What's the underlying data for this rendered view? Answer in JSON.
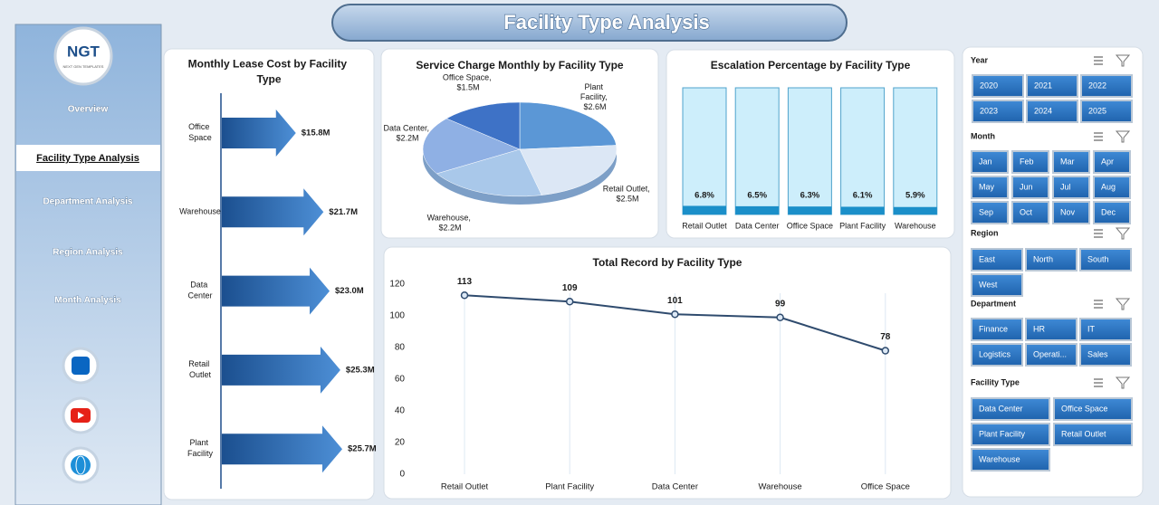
{
  "header": {
    "title": "Facility Type Analysis"
  },
  "sidebar": {
    "logo": "NGT",
    "logo_subtitle": "NEXT GEN TEMPLATES",
    "nav": [
      "Overview",
      "Facility Type Analysis",
      "Department Analysis",
      "Region Analysis",
      "Month Analysis"
    ]
  },
  "chart_data": [
    {
      "type": "arrow-bar",
      "title": "Monthly Lease Cost by Facility Type",
      "categories": [
        "Office Space",
        "Warehouse",
        "Data Center",
        "Retail Outlet",
        "Plant Facility"
      ],
      "values": [
        15.8,
        21.7,
        23.0,
        25.3,
        25.7
      ],
      "value_labels": [
        "$15.8M",
        "$21.7M",
        "$23.0M",
        "$25.3M",
        "$25.7M"
      ]
    },
    {
      "type": "pie",
      "title": "Service Charge Monthly by Facility Type",
      "values": [
        2.6,
        2.5,
        2.2,
        2.2,
        1.5
      ],
      "value_labels": [
        "Plant Facility, $2.6M",
        "Retail Outlet, $2.5M",
        "Warehouse, $2.2M",
        "Data Center, $2.2M",
        "Office Space, $1.5M"
      ],
      "colors": [
        "#5b97d6",
        "#dce7f5",
        "#a9c8ea",
        "#8fb0e4",
        "#3e72c6"
      ]
    },
    {
      "type": "bar",
      "title": "Escalation Percentage by Facility Type",
      "categories": [
        "Retail Outlet",
        "Data Center",
        "Office Space",
        "Plant Facility",
        "Warehouse"
      ],
      "values": [
        6.8,
        6.5,
        6.3,
        6.1,
        5.9
      ],
      "value_labels": [
        "6.8%",
        "6.5%",
        "6.3%",
        "6.1%",
        "5.9%"
      ],
      "ylim": [
        0,
        100
      ],
      "color": "#1b8fc9"
    },
    {
      "type": "line",
      "title": "Total Record by Facility Type",
      "categories": [
        "Retail Outlet",
        "Plant Facility",
        "Data Center",
        "Warehouse",
        "Office Space"
      ],
      "values": [
        113,
        109,
        101,
        99,
        78
      ],
      "ylim": [
        0,
        120
      ],
      "yticks": [
        0,
        20,
        40,
        60,
        80,
        100,
        120
      ],
      "color": "#2f4b6e"
    }
  ],
  "slicers": [
    {
      "title": "Year",
      "items": [
        "2020",
        "2021",
        "2022",
        "2023",
        "2024",
        "2025"
      ]
    },
    {
      "title": "Month",
      "items": [
        "Jan",
        "Feb",
        "Mar",
        "Apr",
        "May",
        "Jun",
        "Jul",
        "Aug",
        "Sep",
        "Oct",
        "Nov",
        "Dec"
      ]
    },
    {
      "title": "Region",
      "items": [
        "East",
        "North",
        "South",
        "West"
      ]
    },
    {
      "title": "Department",
      "items": [
        "Finance",
        "HR",
        "IT",
        "Logistics",
        "Operati...",
        "Sales"
      ]
    },
    {
      "title": "Facility Type",
      "items": [
        "Data Center",
        "Office Space",
        "Plant Facility",
        "Retail Outlet",
        "Warehouse"
      ]
    }
  ]
}
